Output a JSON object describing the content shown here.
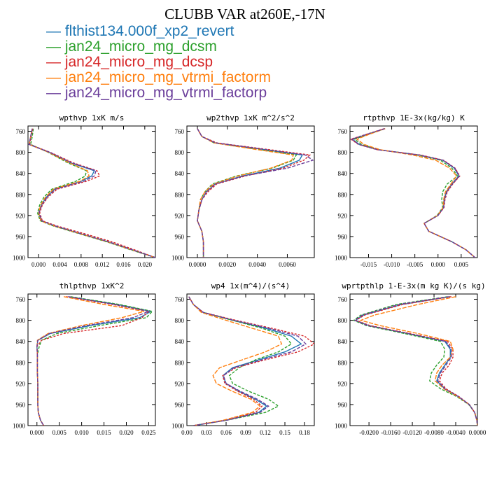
{
  "page_title": "CLUBB VAR at260E,-17N",
  "legend": [
    {
      "label": "flthist134.000f_xp2_revert",
      "color": "#1f77b4"
    },
    {
      "label": "jan24_micro_mg_dcsm",
      "color": "#2ca02c"
    },
    {
      "label": "jan24_micro_mg_dcsp",
      "color": "#d62728"
    },
    {
      "label": "jan24_micro_mg_vtrmi_factorm",
      "color": "#ff7f0e"
    },
    {
      "label": "jan24_micro_mg_vtrmi_factorp",
      "color": "#6a3d9a"
    }
  ],
  "chart_data": [
    {
      "type": "line",
      "title": "wpthvp  1xK m/s",
      "xlim": [
        -0.002,
        0.022
      ],
      "ylim": [
        1000,
        750
      ],
      "xticks": [
        "0.000",
        "0.004",
        "0.008",
        "0.012",
        "0.016",
        "0.020"
      ],
      "xtick_values": [
        0,
        0.004,
        0.008,
        0.012,
        0.016,
        0.02
      ],
      "yticks": [
        760,
        800,
        840,
        880,
        920,
        960,
        1000
      ],
      "y": [
        755,
        770,
        785,
        800,
        820,
        835,
        845,
        855,
        870,
        885,
        900,
        915,
        930,
        940,
        955,
        970,
        985,
        1000
      ],
      "series": [
        {
          "x": [
            -0.0012,
            -0.0015,
            -0.0018,
            0.002,
            0.006,
            0.0105,
            0.01,
            0.008,
            0.003,
            0.0015,
            0.0005,
            0.0,
            0.0005,
            0.003,
            0.008,
            0.013,
            0.0175,
            0.022
          ]
        },
        {
          "x": [
            -0.001,
            -0.0012,
            -0.0015,
            0.0018,
            0.0055,
            0.009,
            0.0088,
            0.007,
            0.0025,
            0.001,
            0.0002,
            -0.0002,
            0.0003,
            0.0028,
            0.0078,
            0.0128,
            0.0173,
            0.022
          ]
        },
        {
          "x": [
            -0.0011,
            -0.0014,
            -0.0017,
            0.0022,
            0.0065,
            0.011,
            0.0115,
            0.009,
            0.0035,
            0.0018,
            0.0007,
            0.0002,
            0.0007,
            0.0035,
            0.0088,
            0.0138,
            0.018,
            0.022
          ]
        },
        {
          "x": [
            -0.0012,
            -0.0015,
            -0.0018,
            0.0019,
            0.0058,
            0.0092,
            0.0095,
            0.0078,
            0.0028,
            0.0013,
            0.0004,
            0.0,
            0.0004,
            0.003,
            0.008,
            0.013,
            0.0175,
            0.022
          ]
        },
        {
          "x": [
            -0.0012,
            -0.0015,
            -0.0018,
            0.0021,
            0.0062,
            0.0108,
            0.0105,
            0.0085,
            0.0032,
            0.0016,
            0.0006,
            0.0001,
            0.0006,
            0.0032,
            0.0082,
            0.0132,
            0.0176,
            0.022
          ]
        }
      ]
    },
    {
      "type": "line",
      "title": "wp2thvp  1xK m^2/s^2",
      "xlim": [
        -0.0007,
        0.0078
      ],
      "ylim": [
        1000,
        750
      ],
      "xticks": [
        "0.0000",
        "0.0020",
        "0.0040",
        "0.0060"
      ],
      "xtick_values": [
        0,
        0.002,
        0.004,
        0.006
      ],
      "yticks": [
        760,
        800,
        840,
        880,
        920,
        960,
        1000
      ],
      "y": [
        755,
        770,
        782,
        795,
        805,
        815,
        830,
        845,
        860,
        875,
        890,
        910,
        930,
        950,
        970,
        985,
        1000
      ],
      "series": [
        {
          "x": [
            0.0,
            0.0003,
            0.0012,
            0.0045,
            0.007,
            0.0068,
            0.0055,
            0.003,
            0.0012,
            0.0006,
            0.0003,
            0.0001,
            0.0,
            0.0003,
            0.0004,
            0.0004,
            0.0004
          ]
        },
        {
          "x": [
            0.0,
            0.0003,
            0.0011,
            0.0042,
            0.0066,
            0.0064,
            0.005,
            0.0026,
            0.001,
            0.0005,
            0.0002,
            0.0001,
            0.0,
            0.0003,
            0.0004,
            0.0004,
            0.0004
          ]
        },
        {
          "x": [
            0.0,
            0.0003,
            0.0013,
            0.0048,
            0.0075,
            0.0071,
            0.0057,
            0.0032,
            0.0013,
            0.0007,
            0.0003,
            0.0001,
            0.0,
            0.0003,
            0.0004,
            0.0004,
            0.0004
          ]
        },
        {
          "x": [
            0.0,
            0.0003,
            0.0011,
            0.004,
            0.0064,
            0.0063,
            0.0049,
            0.0027,
            0.0011,
            0.0005,
            0.0002,
            0.0001,
            0.0,
            0.0003,
            0.0004,
            0.0004,
            0.0004
          ]
        },
        {
          "x": [
            0.0,
            0.0003,
            0.0012,
            0.0046,
            0.0072,
            0.0077,
            0.006,
            0.0031,
            0.0012,
            0.0006,
            0.0003,
            0.0001,
            0.0,
            0.0003,
            0.0004,
            0.0004,
            0.0004
          ]
        }
      ]
    },
    {
      "type": "line",
      "title": "rtpthvp  1E-3x(kg/kg) K",
      "xlim": [
        -0.019,
        0.0085
      ],
      "ylim": [
        1000,
        750
      ],
      "xticks": [
        "-0.015",
        "-0.010",
        "-0.005",
        "0.000",
        "0.005"
      ],
      "xtick_values": [
        -0.015,
        -0.01,
        -0.005,
        0,
        0.005
      ],
      "yticks": [
        760,
        800,
        840,
        880,
        920,
        960,
        1000
      ],
      "y": [
        755,
        765,
        775,
        785,
        795,
        805,
        815,
        830,
        845,
        860,
        875,
        890,
        905,
        920,
        935,
        950,
        970,
        985,
        1000
      ],
      "series": [
        {
          "x": [
            -0.0115,
            -0.015,
            -0.0185,
            -0.017,
            -0.013,
            -0.004,
            0.001,
            0.0035,
            0.0045,
            0.003,
            0.0018,
            0.0013,
            0.0012,
            0.0,
            -0.003,
            -0.002,
            0.003,
            0.006,
            0.008
          ]
        },
        {
          "x": [
            -0.0115,
            -0.0148,
            -0.018,
            -0.0165,
            -0.0128,
            -0.0045,
            0.0005,
            0.003,
            0.0042,
            0.002,
            0.001,
            0.0008,
            0.001,
            -0.0002,
            -0.003,
            -0.002,
            0.003,
            0.006,
            0.008
          ]
        },
        {
          "x": [
            -0.0116,
            -0.0152,
            -0.0188,
            -0.0172,
            -0.0132,
            -0.0038,
            0.0012,
            0.0037,
            0.0047,
            0.0032,
            0.002,
            0.0015,
            0.0013,
            0.0,
            -0.003,
            -0.002,
            0.003,
            0.006,
            0.008
          ]
        },
        {
          "x": [
            -0.0114,
            -0.0146,
            -0.0175,
            -0.016,
            -0.0125,
            -0.0055,
            -0.0005,
            0.0025,
            0.004,
            0.0028,
            0.0016,
            0.0012,
            0.0011,
            -0.0001,
            -0.003,
            -0.002,
            0.003,
            0.006,
            0.008
          ]
        },
        {
          "x": [
            -0.0115,
            -0.0151,
            -0.0186,
            -0.0171,
            -0.0131,
            -0.0042,
            0.0011,
            0.0036,
            0.0046,
            0.0031,
            0.0019,
            0.0014,
            0.0012,
            0.0,
            -0.003,
            -0.002,
            0.003,
            0.006,
            0.008
          ]
        }
      ]
    },
    {
      "type": "line",
      "title": "thlpthvp  1xK^2",
      "xlim": [
        -0.002,
        0.0265
      ],
      "ylim": [
        1000,
        750
      ],
      "xticks": [
        "0.000",
        "0.005",
        "0.010",
        "0.015",
        "0.020",
        "0.025"
      ],
      "xtick_values": [
        0,
        0.005,
        0.01,
        0.015,
        0.02,
        0.025
      ],
      "yticks": [
        760,
        800,
        840,
        880,
        920,
        960,
        1000
      ],
      "y": [
        755,
        770,
        783,
        795,
        810,
        825,
        838,
        850,
        865,
        880,
        900,
        920,
        940,
        960,
        975,
        990,
        1000
      ],
      "series": [
        {
          "x": [
            0.007,
            0.018,
            0.0255,
            0.023,
            0.012,
            0.003,
            0.0002,
            0.0,
            0.0001,
            0.0001,
            0.0001,
            0.0002,
            0.0002,
            0.0002,
            0.0003,
            0.0008,
            0.0015
          ]
        },
        {
          "x": [
            0.0075,
            0.0185,
            0.0258,
            0.0245,
            0.014,
            0.0045,
            0.001,
            0.0005,
            0.0001,
            0.0001,
            0.0001,
            0.0002,
            0.0002,
            0.0002,
            0.0003,
            0.0008,
            0.0015
          ]
        },
        {
          "x": [
            0.0065,
            0.017,
            0.025,
            0.0235,
            0.019,
            0.006,
            0.001,
            0.0,
            0.0001,
            0.0001,
            0.0001,
            0.0002,
            0.0002,
            0.0002,
            0.0003,
            0.0008,
            0.0015
          ]
        },
        {
          "x": [
            0.006,
            0.015,
            0.024,
            0.019,
            0.01,
            0.0025,
            0.0001,
            0.0,
            0.0001,
            0.0001,
            0.0001,
            0.0002,
            0.0002,
            0.0002,
            0.0003,
            0.0008,
            0.0015
          ]
        },
        {
          "x": [
            0.007,
            0.0175,
            0.025,
            0.0215,
            0.011,
            0.0028,
            0.0002,
            0.0,
            0.0001,
            0.0001,
            0.0001,
            0.0002,
            0.0002,
            0.0002,
            0.0003,
            0.0008,
            0.0015
          ]
        }
      ]
    },
    {
      "type": "line",
      "title": "wp4  1x(m^4)/(s^4)",
      "xlim": [
        0.0,
        0.195
      ],
      "ylim": [
        1000,
        750
      ],
      "xticks": [
        "0.00",
        "0.03",
        "0.06",
        "0.09",
        "0.12",
        "0.15",
        "0.18"
      ],
      "xtick_values": [
        0,
        0.03,
        0.06,
        0.09,
        0.12,
        0.15,
        0.18
      ],
      "yticks": [
        760,
        800,
        840,
        880,
        920,
        960,
        1000
      ],
      "y": [
        755,
        770,
        785,
        800,
        815,
        830,
        845,
        860,
        875,
        890,
        905,
        920,
        935,
        950,
        963,
        975,
        990,
        1000
      ],
      "series": [
        {
          "x": [
            0.003,
            0.01,
            0.025,
            0.07,
            0.12,
            0.16,
            0.175,
            0.15,
            0.11,
            0.07,
            0.055,
            0.06,
            0.08,
            0.105,
            0.122,
            0.11,
            0.06,
            0.01
          ]
        },
        {
          "x": [
            0.003,
            0.01,
            0.025,
            0.07,
            0.115,
            0.15,
            0.16,
            0.14,
            0.105,
            0.08,
            0.065,
            0.07,
            0.095,
            0.125,
            0.14,
            0.12,
            0.06,
            0.01
          ]
        },
        {
          "x": [
            0.003,
            0.01,
            0.025,
            0.075,
            0.13,
            0.18,
            0.195,
            0.17,
            0.12,
            0.075,
            0.055,
            0.058,
            0.078,
            0.102,
            0.115,
            0.105,
            0.058,
            0.01
          ]
        },
        {
          "x": [
            0.003,
            0.01,
            0.022,
            0.06,
            0.1,
            0.14,
            0.145,
            0.12,
            0.085,
            0.05,
            0.04,
            0.045,
            0.07,
            0.098,
            0.112,
            0.1,
            0.055,
            0.01
          ]
        },
        {
          "x": [
            0.003,
            0.01,
            0.025,
            0.072,
            0.125,
            0.17,
            0.182,
            0.16,
            0.115,
            0.072,
            0.056,
            0.06,
            0.082,
            0.108,
            0.125,
            0.112,
            0.06,
            0.01
          ]
        }
      ]
    },
    {
      "type": "line",
      "title": "wprtpthlp  1-E-3x(m kg K)/(s kg)",
      "xlim": [
        -0.0235,
        0.0
      ],
      "ylim": [
        1000,
        750
      ],
      "xticks": [
        "-0.0200",
        "-0.0160",
        "-0.0120",
        "-0.0080",
        "-0.0040",
        "0.0000"
      ],
      "xtick_values": [
        -0.02,
        -0.016,
        -0.012,
        -0.008,
        -0.004,
        0
      ],
      "yticks": [
        760,
        800,
        840,
        880,
        920,
        960,
        1000
      ],
      "y": [
        755,
        770,
        790,
        800,
        810,
        825,
        840,
        855,
        870,
        885,
        900,
        915,
        930,
        945,
        960,
        975,
        990,
        1000
      ],
      "series": [
        {
          "x": [
            -0.005,
            -0.014,
            -0.021,
            -0.0225,
            -0.02,
            -0.013,
            -0.006,
            -0.005,
            -0.005,
            -0.006,
            -0.007,
            -0.0075,
            -0.006,
            -0.0035,
            -0.0015,
            -0.0005,
            -0.0001,
            0.0
          ]
        },
        {
          "x": [
            -0.0055,
            -0.015,
            -0.0215,
            -0.0228,
            -0.0205,
            -0.0135,
            -0.0068,
            -0.006,
            -0.0062,
            -0.0075,
            -0.0085,
            -0.0088,
            -0.0068,
            -0.0038,
            -0.0016,
            -0.0005,
            -0.0001,
            0.0
          ]
        },
        {
          "x": [
            -0.0048,
            -0.0138,
            -0.0208,
            -0.0224,
            -0.0198,
            -0.0125,
            -0.0055,
            -0.0045,
            -0.0045,
            -0.0052,
            -0.0065,
            -0.007,
            -0.0058,
            -0.0034,
            -0.0015,
            -0.0005,
            -0.0001,
            0.0
          ]
        },
        {
          "x": [
            -0.004,
            -0.011,
            -0.019,
            -0.0215,
            -0.018,
            -0.011,
            -0.005,
            -0.0045,
            -0.005,
            -0.0065,
            -0.0075,
            -0.0078,
            -0.0062,
            -0.0036,
            -0.0015,
            -0.0005,
            -0.0001,
            0.0
          ]
        },
        {
          "x": [
            -0.0052,
            -0.0145,
            -0.0212,
            -0.0226,
            -0.0202,
            -0.0128,
            -0.0058,
            -0.0048,
            -0.0048,
            -0.0058,
            -0.0068,
            -0.0073,
            -0.006,
            -0.0035,
            -0.0015,
            -0.0005,
            -0.0001,
            0.0
          ]
        }
      ]
    }
  ]
}
